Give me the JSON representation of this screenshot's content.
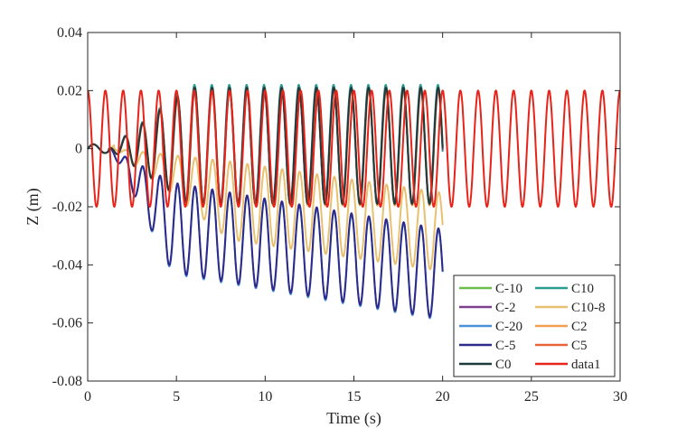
{
  "chart_data": {
    "type": "line",
    "title": "",
    "xlabel": "Time (s)",
    "ylabel": "Z (m)",
    "xlim": [
      0,
      30
    ],
    "ylim": [
      -0.08,
      0.04
    ],
    "x_ticks": [
      0,
      5,
      10,
      15,
      20,
      25,
      30
    ],
    "y_ticks": [
      -0.08,
      -0.06,
      -0.04,
      -0.02,
      0,
      0.02,
      0.04
    ],
    "x_tick_labels": [
      "0",
      "5",
      "10",
      "15",
      "20",
      "25",
      "30"
    ],
    "y_tick_labels": [
      "-0.08",
      "-0.06",
      "-0.04",
      "-0.02",
      "0",
      "0.02",
      "0.04"
    ],
    "grid": false,
    "legend_position": "bottom-right",
    "series": [
      {
        "name": "C-10",
        "color": "#6abf4b",
        "t_end": 20,
        "start": 1.2,
        "ramp": 4.5,
        "amp": 0.0205,
        "base": 0.001,
        "baseSlope": 0,
        "period": 0.98,
        "phase": 0.6
      },
      {
        "name": "C10",
        "color": "#2a9d8f",
        "t_end": 20,
        "start": 1.2,
        "ramp": 4.5,
        "amp": 0.0205,
        "base": 0.0015,
        "baseSlope": 0,
        "period": 0.98,
        "phase": 0.7
      },
      {
        "name": "C-2",
        "color": "#7e3f8f",
        "t_end": 20,
        "start": 1.2,
        "ramp": 4.5,
        "amp": 0.02,
        "base": 0.001,
        "baseSlope": 0,
        "period": 0.98,
        "phase": 0.65
      },
      {
        "name": "C10-8",
        "color": "#e8c170",
        "t_end": 20,
        "start": 1.5,
        "ramp": 6.5,
        "amp": 0.0135,
        "base": -0.012,
        "baseSlope": -0.0009,
        "period": 0.98,
        "phase": 0.4
      },
      {
        "name": "C-20",
        "color": "#4a90d9",
        "t_end": 20,
        "start": 1.3,
        "ramp": 3.5,
        "amp": 0.0155,
        "base": -0.024,
        "baseSlope": -0.00105,
        "period": 0.98,
        "phase": 0.5
      },
      {
        "name": "C2",
        "color": "#f0a050",
        "t_end": 20,
        "start": 1.2,
        "ramp": 4.5,
        "amp": 0.02,
        "base": 0.0005,
        "baseSlope": 0,
        "period": 0.98,
        "phase": 0.55
      },
      {
        "name": "C-5",
        "color": "#2e2a8a",
        "t_end": 20,
        "start": 1.3,
        "ramp": 3.5,
        "amp": 0.0155,
        "base": -0.0235,
        "baseSlope": -0.00105,
        "period": 0.98,
        "phase": 0.52
      },
      {
        "name": "C5",
        "color": "#e8643c",
        "t_end": 20,
        "start": 1.2,
        "ramp": 4.5,
        "amp": 0.0195,
        "base": 0.0005,
        "baseSlope": 0,
        "period": 0.98,
        "phase": 0.58
      },
      {
        "name": "C0",
        "color": "#1f3a3a",
        "t_end": 20,
        "start": 1.2,
        "ramp": 4.5,
        "amp": 0.02,
        "base": 0.001,
        "baseSlope": 0,
        "period": 0.98,
        "phase": 0.62
      },
      {
        "name": "data1",
        "color": "#e8231a",
        "t_end": 30,
        "start": 0,
        "ramp": 0,
        "amp": 0.02,
        "base": 0,
        "baseSlope": 0,
        "period": 1.0,
        "phase": 0.0
      }
    ]
  }
}
